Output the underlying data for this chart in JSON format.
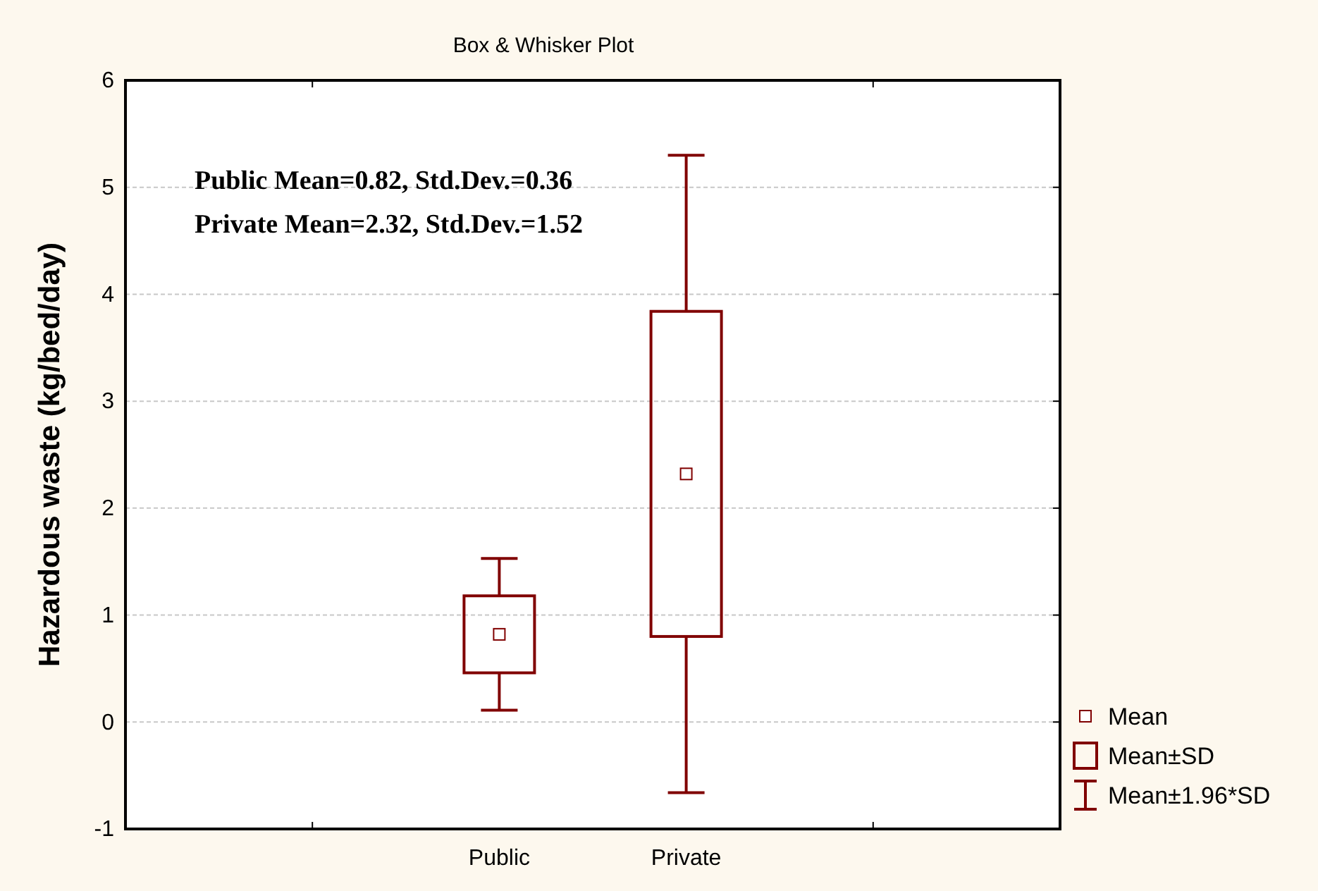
{
  "chart_data": {
    "type": "box",
    "title": "Box & Whisker Plot",
    "ylabel": "Hazardous waste (kg/bed/day)",
    "categories": [
      "Public",
      "Private"
    ],
    "boxes": [
      {
        "low": 0.11,
        "q1": 0.46,
        "median": 0.82,
        "q3": 1.18,
        "high": 1.53
      },
      {
        "low": -0.66,
        "q1": 0.8,
        "median": 2.32,
        "q3": 3.84,
        "high": 5.3
      }
    ],
    "color": "#800000",
    "ylim": [
      -1,
      6
    ],
    "yticks": [
      -1,
      0,
      1,
      2,
      3,
      4,
      5,
      6
    ],
    "grid": "y",
    "annotations": [
      "Public Mean=0.82, Std.Dev.=0.36",
      "Private Mean=2.32, Std.Dev.=1.52",
      "Mean",
      "Mean±SD",
      "Mean±1.96*SD"
    ]
  }
}
